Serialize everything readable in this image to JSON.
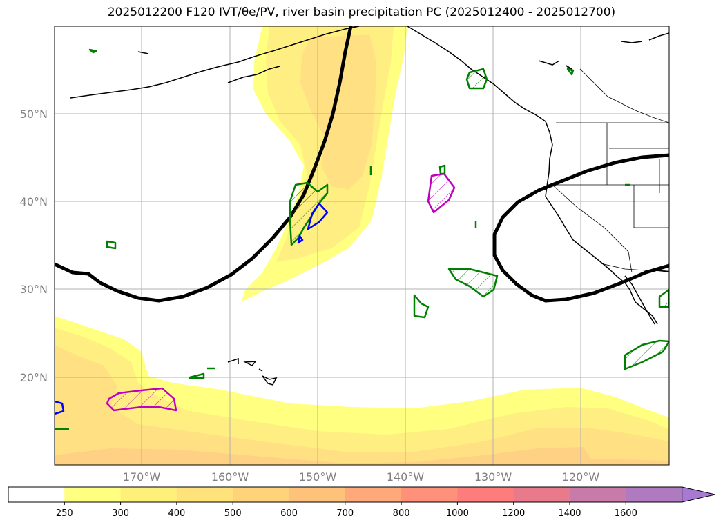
{
  "title": "2025012200 F120 IVT/θe/PV, river basin precipitation PC (2025012400 - 2025012700)",
  "map": {
    "lat_labels": [
      "50°N",
      "40°N",
      "30°N",
      "20°N"
    ],
    "lon_labels": [
      "170°W",
      "160°W",
      "150°W",
      "140°W",
      "130°W",
      "120°W"
    ]
  },
  "colorbar": {
    "levels": [
      "250",
      "300",
      "400",
      "500",
      "600",
      "700",
      "800",
      "1000",
      "1200",
      "1400",
      "1600"
    ],
    "colors": [
      "#ffffff",
      "#ffff80",
      "#fff07a",
      "#ffe27a",
      "#ffd37a",
      "#ffc27a",
      "#ffa87a",
      "#ff907a",
      "#ff7c7c",
      "#e87a8c",
      "#c87aa8",
      "#b07ac0",
      "#a57ad0"
    ]
  },
  "legend_colors": {
    "ivt_light": "#ffff80",
    "ivt_mid": "#ffee82",
    "ivt_dark": "#ffe083",
    "ivt_darkest": "#ffd185",
    "pv_contour": "#000000",
    "precip_green": "#008000",
    "precip_blue": "#0000ff",
    "precip_magenta": "#c000c0"
  }
}
